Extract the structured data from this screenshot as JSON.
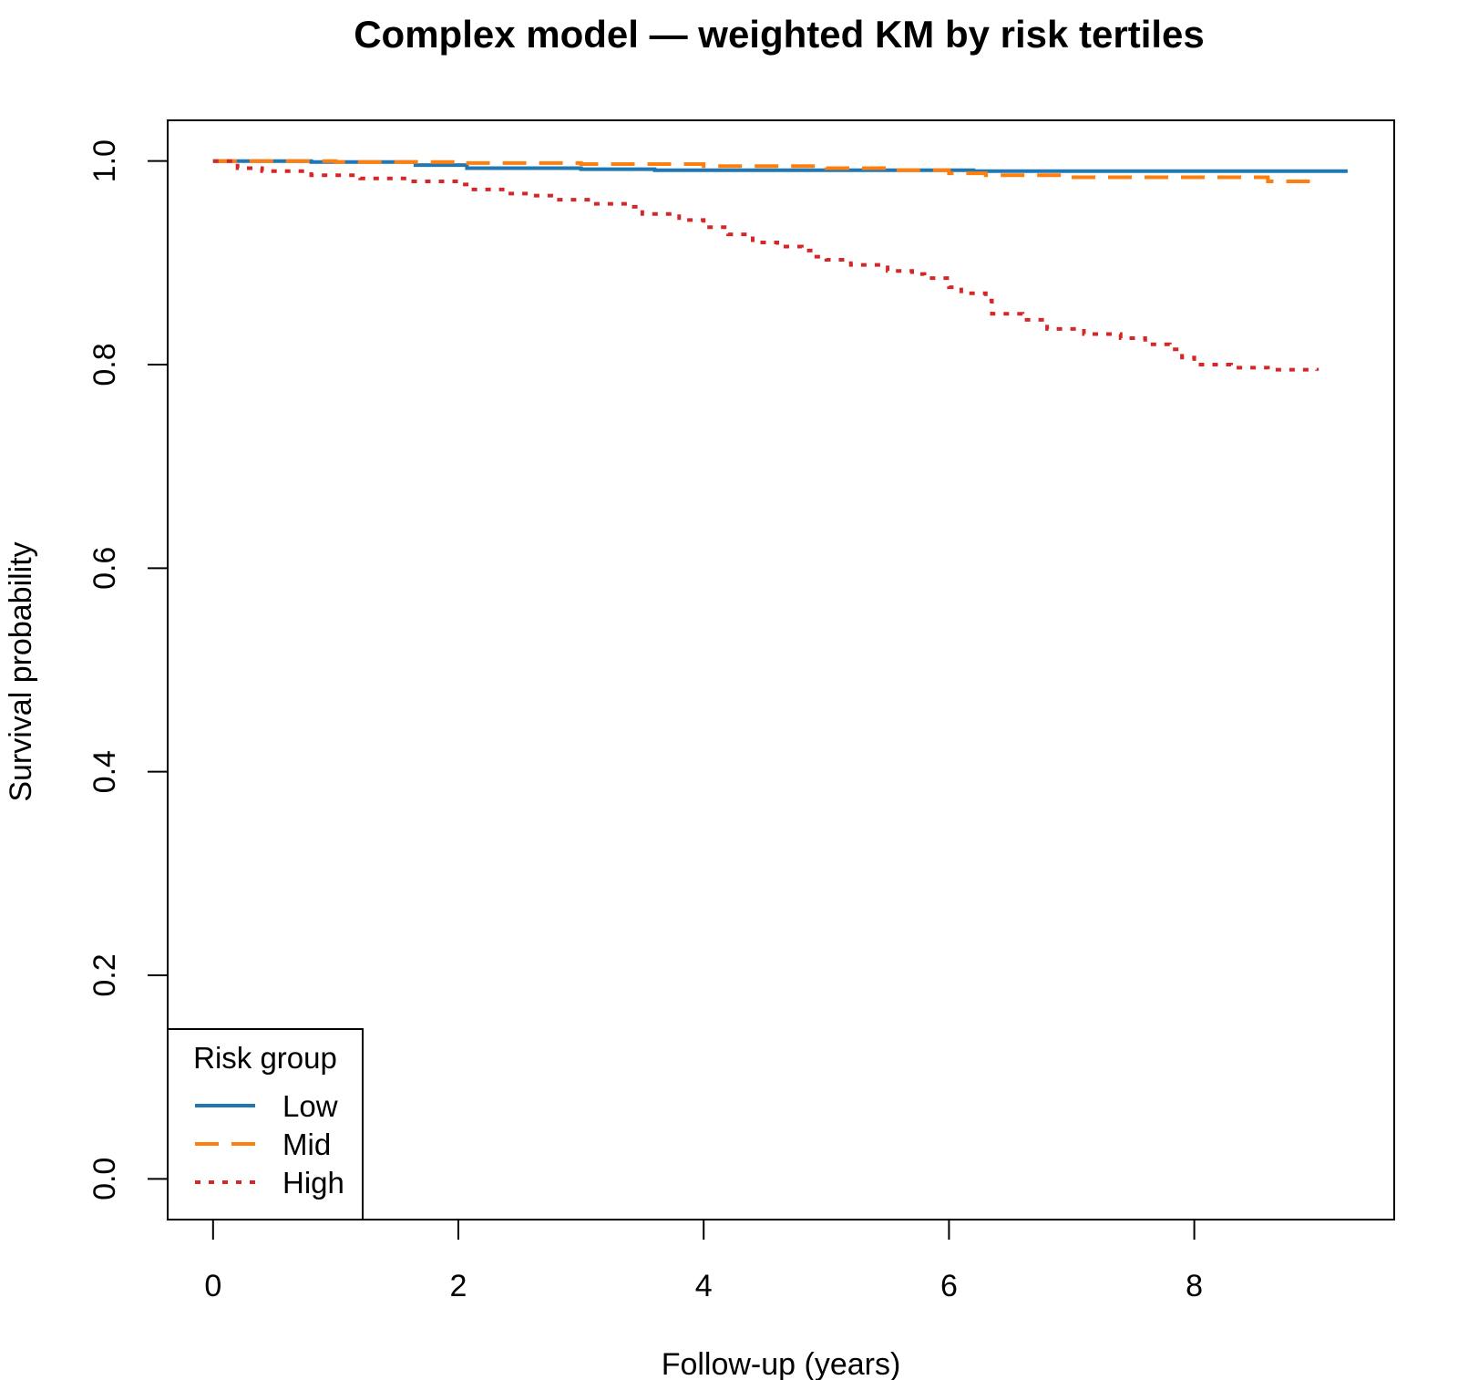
{
  "chart_data": {
    "type": "line",
    "step": true,
    "title": "Complex model — weighted KM by risk tertiles",
    "xlabel": "Follow-up (years)",
    "ylabel": "Survival probability",
    "xlim": [
      -0.37,
      9.63
    ],
    "ylim": [
      -0.04,
      1.04
    ],
    "xticks": [
      0,
      2,
      4,
      6,
      8
    ],
    "xtick_labels": [
      "0",
      "2",
      "4",
      "6",
      "8"
    ],
    "yticks": [
      0.0,
      0.2,
      0.4,
      0.6,
      0.8,
      1.0
    ],
    "ytick_labels": [
      "0.0",
      "0.2",
      "0.4",
      "0.6",
      "0.8",
      "1.0"
    ],
    "grid": false,
    "legend": {
      "title": "Risk group",
      "position": "bottom-left"
    },
    "series": [
      {
        "name": "Low",
        "color": "#1f77b4",
        "linestyle": "solid",
        "points": [
          [
            0,
            1.0
          ],
          [
            0.8,
            0.999
          ],
          [
            1.65,
            0.996
          ],
          [
            2.07,
            0.993
          ],
          [
            3.0,
            0.992
          ],
          [
            3.6,
            0.991
          ],
          [
            6.2,
            0.99
          ],
          [
            9.25,
            0.99
          ]
        ]
      },
      {
        "name": "Mid",
        "color": "#ff7f0e",
        "linestyle": "dashed",
        "points": [
          [
            0,
            1.0
          ],
          [
            1.0,
            0.999
          ],
          [
            2.0,
            0.998
          ],
          [
            3.0,
            0.997
          ],
          [
            4.0,
            0.995
          ],
          [
            5.0,
            0.993
          ],
          [
            5.5,
            0.991
          ],
          [
            6.0,
            0.988
          ],
          [
            6.3,
            0.986
          ],
          [
            7.0,
            0.984
          ],
          [
            8.6,
            0.983
          ],
          [
            8.6,
            0.98
          ],
          [
            9.0,
            0.98
          ]
        ]
      },
      {
        "name": "High",
        "color": "#d62728",
        "linestyle": "dotted",
        "points": [
          [
            0,
            1.0
          ],
          [
            0.2,
            0.993
          ],
          [
            0.4,
            0.99
          ],
          [
            0.8,
            0.986
          ],
          [
            1.2,
            0.983
          ],
          [
            1.6,
            0.98
          ],
          [
            2.0,
            0.977
          ],
          [
            2.1,
            0.972
          ],
          [
            2.4,
            0.968
          ],
          [
            2.6,
            0.966
          ],
          [
            2.8,
            0.962
          ],
          [
            3.1,
            0.958
          ],
          [
            3.4,
            0.955
          ],
          [
            3.5,
            0.948
          ],
          [
            3.8,
            0.942
          ],
          [
            4.0,
            0.935
          ],
          [
            4.2,
            0.928
          ],
          [
            4.4,
            0.92
          ],
          [
            4.6,
            0.916
          ],
          [
            4.8,
            0.912
          ],
          [
            4.9,
            0.906
          ],
          [
            5.0,
            0.903
          ],
          [
            5.2,
            0.898
          ],
          [
            5.5,
            0.892
          ],
          [
            5.7,
            0.889
          ],
          [
            5.8,
            0.885
          ],
          [
            6.0,
            0.876
          ],
          [
            6.1,
            0.87
          ],
          [
            6.3,
            0.863
          ],
          [
            6.35,
            0.85
          ],
          [
            6.6,
            0.844
          ],
          [
            6.8,
            0.835
          ],
          [
            7.1,
            0.83
          ],
          [
            7.4,
            0.826
          ],
          [
            7.6,
            0.82
          ],
          [
            7.8,
            0.815
          ],
          [
            7.9,
            0.807
          ],
          [
            8.0,
            0.8
          ],
          [
            8.3,
            0.797
          ],
          [
            8.6,
            0.795
          ],
          [
            9.0,
            0.794
          ]
        ]
      }
    ]
  }
}
